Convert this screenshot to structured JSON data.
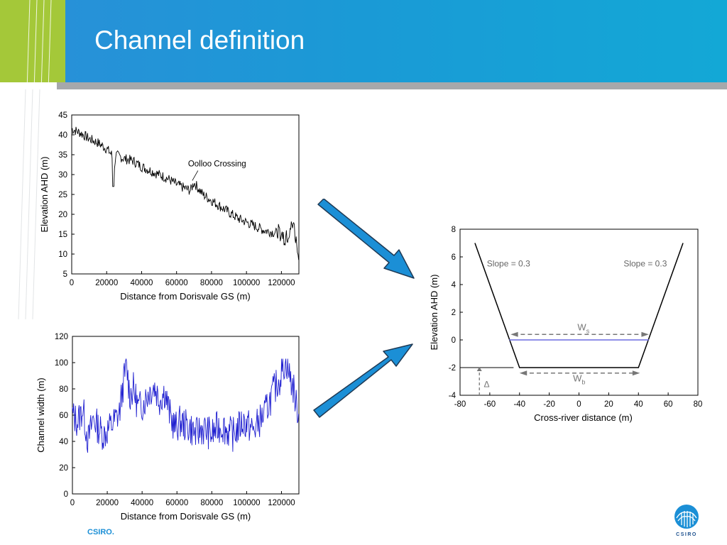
{
  "slide": {
    "title": "Channel definition",
    "footer_brand": "CSIRO.",
    "logo_text": "CSIRO"
  },
  "colors": {
    "header_blue": "#1a9ad6",
    "header_green": "#a4c839",
    "rule_gray": "#a6a8ab",
    "arrow_blue": "#1b8fd6",
    "width_line": "#1f1fd0",
    "water_line": "#6b6be0"
  },
  "chart_data": [
    {
      "type": "line",
      "id": "elevation_profile",
      "xlabel": "Distance from Dorisvale GS (m)",
      "ylabel": "Elevation AHD (m)",
      "xlim": [
        0,
        130000
      ],
      "ylim": [
        5,
        45
      ],
      "xticks": [
        0,
        20000,
        40000,
        60000,
        80000,
        100000,
        120000
      ],
      "yticks": [
        5,
        10,
        15,
        20,
        25,
        30,
        35,
        40,
        45
      ],
      "annotation": "Oolloo Crossing",
      "annotation_at": [
        69000,
        28.5
      ],
      "series": [
        {
          "color": "#000000",
          "x": [
            0,
            5000,
            10000,
            15000,
            20000,
            23000,
            24000,
            25000,
            30000,
            35000,
            40000,
            45000,
            50000,
            55000,
            60000,
            65000,
            68000,
            70000,
            75000,
            80000,
            85000,
            90000,
            95000,
            100000,
            105000,
            110000,
            115000,
            120000,
            122000,
            125000,
            127000,
            128000,
            129000,
            130000
          ],
          "y": [
            41.5,
            40.5,
            39,
            38,
            36.5,
            35,
            27,
            35,
            34,
            33.5,
            32,
            31,
            30,
            29,
            27.5,
            26.5,
            26,
            28,
            25,
            23.5,
            22,
            20.5,
            19,
            18,
            17,
            16,
            15.5,
            15,
            14,
            16,
            18,
            14,
            12,
            9
          ]
        }
      ]
    },
    {
      "type": "line",
      "id": "channel_width",
      "xlabel": "Distance from Dorisvale GS (m)",
      "ylabel": "Channel width (m)",
      "xlim": [
        0,
        130000
      ],
      "ylim": [
        0,
        120
      ],
      "xticks": [
        0,
        20000,
        40000,
        60000,
        80000,
        100000,
        120000
      ],
      "yticks": [
        0,
        20,
        40,
        60,
        80,
        100,
        120
      ],
      "series": [
        {
          "color": "#1f1fd0",
          "x": [
            0,
            3000,
            6000,
            9000,
            12000,
            15000,
            18000,
            21000,
            24000,
            27000,
            29000,
            31000,
            33000,
            35000,
            38000,
            41000,
            44000,
            47000,
            50000,
            53000,
            56000,
            59000,
            62000,
            65000,
            68000,
            71000,
            74000,
            77000,
            80000,
            83000,
            86000,
            89000,
            92000,
            95000,
            98000,
            101000,
            104000,
            107000,
            110000,
            113000,
            116000,
            119000,
            121000,
            123000,
            125000,
            127000,
            129000,
            130000
          ],
          "y": [
            60,
            55,
            65,
            40,
            58,
            50,
            45,
            50,
            55,
            62,
            82,
            98,
            75,
            80,
            65,
            70,
            78,
            82,
            72,
            78,
            60,
            50,
            55,
            52,
            50,
            45,
            50,
            48,
            45,
            50,
            52,
            48,
            45,
            50,
            55,
            52,
            48,
            55,
            60,
            70,
            80,
            88,
            98,
            100,
            88,
            80,
            62,
            70
          ]
        }
      ]
    },
    {
      "type": "line",
      "id": "cross_section",
      "xlabel": "Cross-river distance (m)",
      "ylabel": "Elevation AHD (m)",
      "xlim": [
        -80,
        80
      ],
      "ylim": [
        -4,
        8
      ],
      "xticks": [
        -80,
        -60,
        -40,
        -20,
        0,
        20,
        40,
        60,
        80
      ],
      "yticks": [
        -4,
        -2,
        0,
        2,
        4,
        6,
        8
      ],
      "labels": {
        "slope_left": "Slope = 0.3",
        "slope_right": "Slope = 0.3",
        "ws": "W",
        "ws_sub": "s",
        "wb": "W",
        "wb_sub": "b",
        "delta": "Δ"
      },
      "series": [
        {
          "name": "channel",
          "color": "#000000",
          "x": [
            -70,
            -40,
            40,
            70
          ],
          "y": [
            7,
            -2,
            -2,
            7
          ]
        },
        {
          "name": "water",
          "color": "#6b6be0",
          "x": [
            -47,
            47
          ],
          "y": [
            0,
            0
          ]
        }
      ]
    }
  ]
}
